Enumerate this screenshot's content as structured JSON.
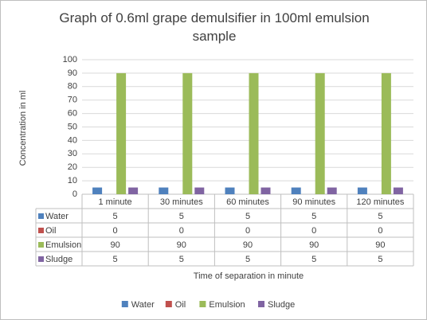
{
  "chart_data": {
    "type": "bar",
    "title": "Graph of 0.6ml grape demulsifier in 100ml emulsion sample",
    "x_label": "Time of separation in minute",
    "y_label": "Concentration in ml",
    "categories": [
      "1 minute",
      "30 minutes",
      "60 minutes",
      "90 minutes",
      "120 minutes"
    ],
    "series": [
      {
        "name": "Water",
        "color": "#4f81bd",
        "values": [
          5,
          5,
          5,
          5,
          5
        ]
      },
      {
        "name": "Oil",
        "color": "#c0504d",
        "values": [
          0,
          0,
          0,
          0,
          0
        ]
      },
      {
        "name": "Emulsion",
        "color": "#9bbb59",
        "values": [
          90,
          90,
          90,
          90,
          90
        ]
      },
      {
        "name": "Sludge",
        "color": "#8064a2",
        "values": [
          5,
          5,
          5,
          5,
          5
        ]
      }
    ],
    "ylim": [
      0,
      100
    ],
    "yticks": [
      0,
      10,
      20,
      30,
      40,
      50,
      60,
      70,
      80,
      90,
      100
    ],
    "grid": true,
    "legend": "bottom"
  }
}
